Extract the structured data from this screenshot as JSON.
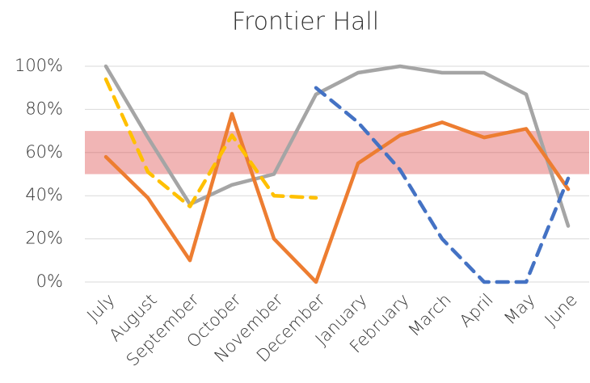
{
  "chart_data": {
    "type": "line",
    "title": "Frontier Hall",
    "categories": [
      "July",
      "August",
      "September",
      "October",
      "November",
      "December",
      "January",
      "February",
      "March",
      "April",
      "May",
      "June"
    ],
    "series": [
      {
        "color": "#a5a5a5",
        "dashed": false,
        "values": [
          100,
          67,
          36,
          45,
          50,
          87,
          97,
          100,
          97,
          97,
          87,
          26
        ]
      },
      {
        "color": "#ed7d31",
        "dashed": false,
        "values": [
          58,
          39,
          10,
          78,
          20,
          0,
          55,
          68,
          74,
          67,
          71,
          43
        ]
      },
      {
        "color": "#ffc000",
        "dashed": true,
        "values": [
          94,
          51,
          35,
          68,
          40,
          39,
          null,
          null,
          null,
          null,
          null,
          null
        ]
      },
      {
        "color": "#4472c4",
        "dashed": true,
        "values": [
          null,
          null,
          null,
          null,
          null,
          90,
          74,
          52,
          20,
          0,
          0,
          48
        ]
      }
    ],
    "band": [
      50,
      70
    ],
    "band_color": "rgba(220,70,70,0.4)",
    "ylim": [
      0,
      100
    ],
    "yticks": [
      {
        "value": 0,
        "label": "0%"
      },
      {
        "value": 20,
        "label": "20%"
      },
      {
        "value": 40,
        "label": "40%"
      },
      {
        "value": 60,
        "label": "60%"
      },
      {
        "value": 80,
        "label": "80%"
      },
      {
        "value": 100,
        "label": "100%"
      }
    ],
    "grid": true
  }
}
